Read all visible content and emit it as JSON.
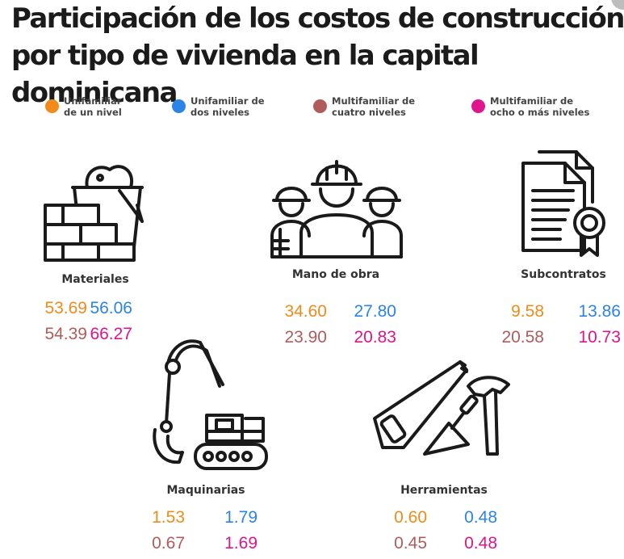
{
  "title": {
    "line1": "Participación de los costos de construcción",
    "line2": "por tipo de vivienda en la capital dominicana"
  },
  "legend": [
    {
      "line1": "Unifamiliar",
      "line2": "de un nivel",
      "color": "#f28b1a"
    },
    {
      "line1": "Unifamiliar de",
      "line2": "dos niveles",
      "color": "#2b84e6"
    },
    {
      "line1": "Multifamiliar de",
      "line2": "cuatro niveles",
      "color": "#b05c5c"
    },
    {
      "line1": "Multifamiliar de",
      "line2": "ocho o más niveles",
      "color": "#e0148c"
    }
  ],
  "chart_data": {
    "type": "table",
    "title": "Participación de los costos de construcción por tipo de vivienda en la capital dominicana",
    "series": [
      {
        "name": "Unifamiliar de un nivel",
        "color": "#f28b1a"
      },
      {
        "name": "Unifamiliar de dos niveles",
        "color": "#2b84e6"
      },
      {
        "name": "Multifamiliar de cuatro niveles",
        "color": "#b05c5c"
      },
      {
        "name": "Multifamiliar de ocho o más niveles",
        "color": "#e0148c"
      }
    ],
    "categories": [
      {
        "label": "Materiales",
        "icon": "bricks-bucket-icon",
        "values": [
          "53.69",
          "56.06",
          "54.39",
          "66.27"
        ]
      },
      {
        "label": "Mano de obra",
        "icon": "workers-icon",
        "values": [
          "34.60",
          "27.80",
          "23.90",
          "20.83"
        ]
      },
      {
        "label": "Subcontratos",
        "icon": "contract-document-icon",
        "values": [
          "9.58",
          "13.86",
          "20.58",
          "10.73"
        ]
      },
      {
        "label": "Maquinarias",
        "icon": "excavator-icon",
        "values": [
          "1.53",
          "1.79",
          "0.67",
          "1.69"
        ]
      },
      {
        "label": "Herramientas",
        "icon": "tools-icon",
        "values": [
          "0.60",
          "0.48",
          "0.45",
          "0.48"
        ]
      }
    ]
  }
}
